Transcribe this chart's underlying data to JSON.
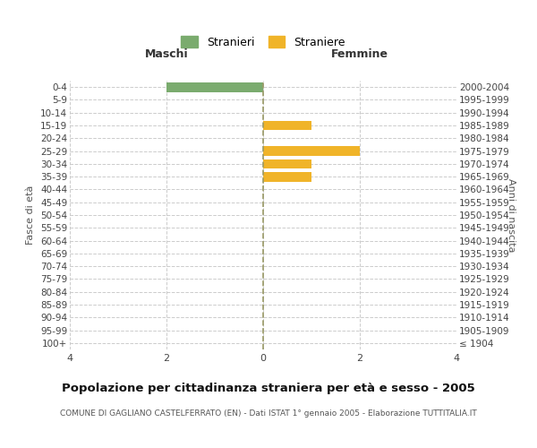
{
  "age_groups": [
    "100+",
    "95-99",
    "90-94",
    "85-89",
    "80-84",
    "75-79",
    "70-74",
    "65-69",
    "60-64",
    "55-59",
    "50-54",
    "45-49",
    "40-44",
    "35-39",
    "30-34",
    "25-29",
    "20-24",
    "15-19",
    "10-14",
    "5-9",
    "0-4"
  ],
  "birth_years": [
    "≤ 1904",
    "1905-1909",
    "1910-1914",
    "1915-1919",
    "1920-1924",
    "1925-1929",
    "1930-1934",
    "1935-1939",
    "1940-1944",
    "1945-1949",
    "1950-1954",
    "1955-1959",
    "1960-1964",
    "1965-1969",
    "1970-1974",
    "1975-1979",
    "1980-1984",
    "1985-1989",
    "1990-1994",
    "1995-1999",
    "2000-2004"
  ],
  "males": [
    0,
    0,
    0,
    0,
    0,
    0,
    0,
    0,
    0,
    0,
    0,
    0,
    0,
    0,
    0,
    0,
    0,
    0,
    0,
    0,
    2
  ],
  "females": [
    0,
    0,
    0,
    0,
    0,
    0,
    0,
    0,
    0,
    0,
    0,
    0,
    0,
    1,
    1,
    2,
    0,
    1,
    0,
    0,
    0
  ],
  "male_color": "#7aab6e",
  "female_color": "#f0b429",
  "male_label": "Stranieri",
  "female_label": "Straniere",
  "xlabel_left": "Maschi",
  "xlabel_right": "Femmine",
  "ylabel_left": "Fasce di età",
  "ylabel_right": "Anni di nascita",
  "xlim": 4,
  "title": "Popolazione per cittadinanza straniera per età e sesso - 2005",
  "subtitle": "COMUNE DI GAGLIANO CASTELFERRATO (EN) - Dati ISTAT 1° gennaio 2005 - Elaborazione TUTTITALIA.IT",
  "bg_color": "#ffffff",
  "grid_color": "#cccccc",
  "center_line_color": "#999966",
  "bar_height": 0.75
}
